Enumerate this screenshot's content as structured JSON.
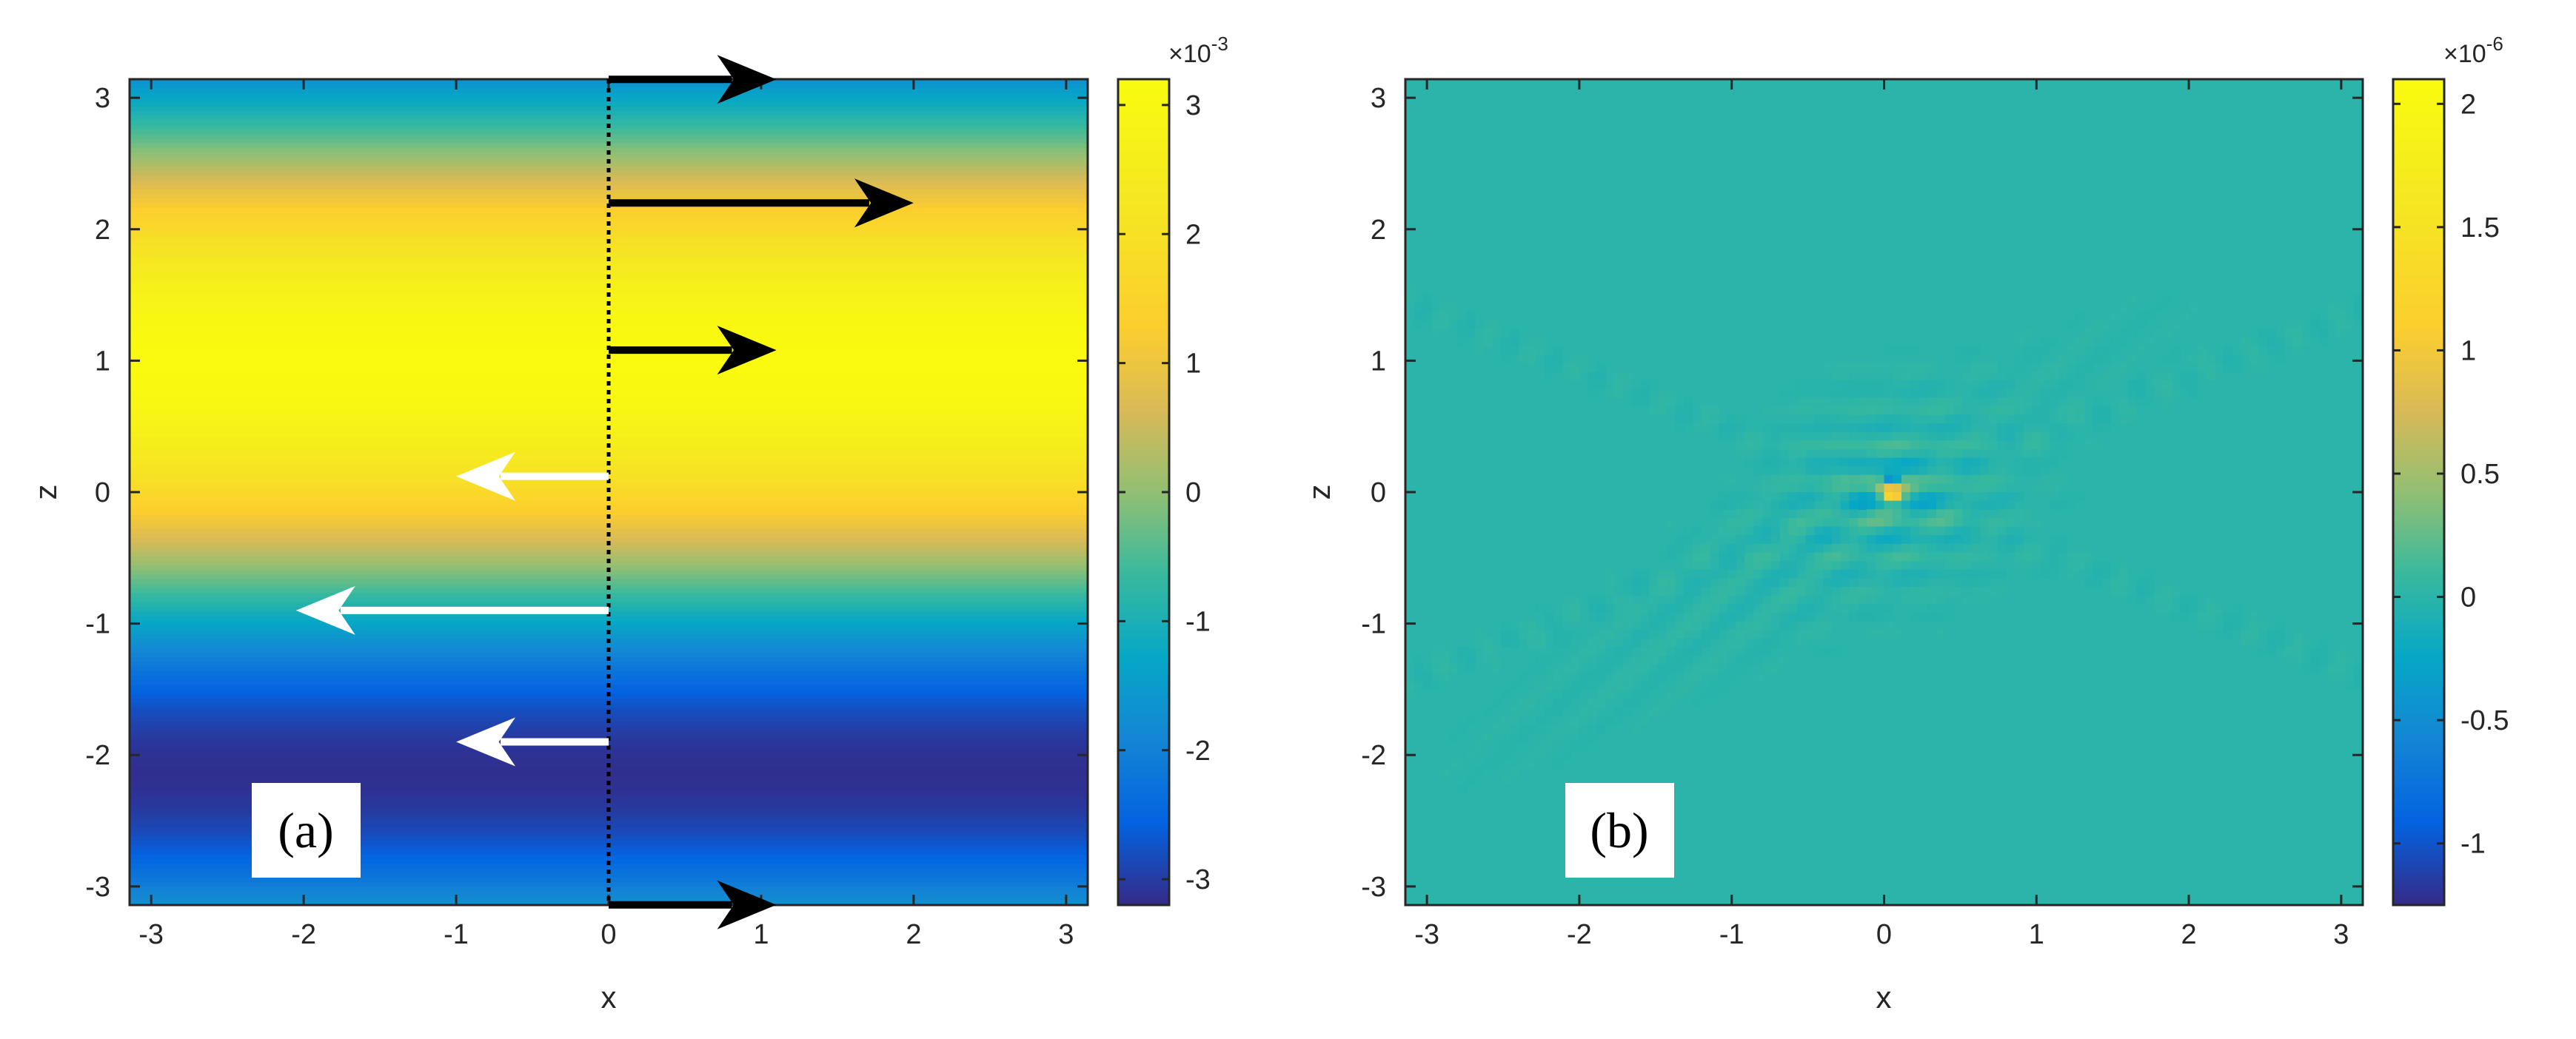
{
  "chart_data": [
    {
      "type": "heatmap",
      "panel_label": "(a)",
      "xlabel": "x",
      "ylabel": "z",
      "xlim": [
        -3.1416,
        3.1416
      ],
      "ylim": [
        -3.1416,
        3.1416
      ],
      "x_ticks": [
        -3,
        -2,
        -1,
        0,
        1,
        2,
        3
      ],
      "y_ticks": [
        -3,
        -2,
        -1,
        0,
        1,
        2,
        3
      ],
      "colormap": "parula",
      "colorbar": {
        "multiplier": "×10",
        "exponent": "-3",
        "range": [
          -3.2,
          3.2
        ],
        "ticks": [
          -3,
          -2,
          -1,
          0,
          1,
          2,
          3
        ]
      },
      "field": "value = 3.14e-3 * sin(z + 0.57), independent of x",
      "profile_line": {
        "x": 0,
        "style": "dotted"
      },
      "arrows": [
        {
          "z": 3.14,
          "length": 1.1,
          "color": "#000000"
        },
        {
          "z": 2.2,
          "length": 2.0,
          "color": "#000000"
        },
        {
          "z": 1.08,
          "length": 1.1,
          "color": "#000000"
        },
        {
          "z": 0.12,
          "length": -1.0,
          "color": "#ffffff"
        },
        {
          "z": -0.9,
          "length": -2.05,
          "color": "#ffffff"
        },
        {
          "z": -1.9,
          "length": -1.0,
          "color": "#ffffff"
        },
        {
          "z": -3.14,
          "length": 1.1,
          "color": "#000000"
        }
      ]
    },
    {
      "type": "heatmap",
      "panel_label": "(b)",
      "xlabel": "x",
      "ylabel": "z",
      "xlim": [
        -3.1416,
        3.1416
      ],
      "ylim": [
        -3.1416,
        3.1416
      ],
      "x_ticks": [
        -3,
        -2,
        -1,
        0,
        1,
        2,
        3
      ],
      "y_ticks": [
        -3,
        -2,
        -1,
        0,
        1,
        2,
        3
      ],
      "colormap": "parula",
      "colorbar": {
        "multiplier": "×10",
        "exponent": "-6",
        "range": [
          -1.25,
          2.1
        ],
        "ticks": [
          -1,
          -0.5,
          0,
          0.5,
          1,
          1.5,
          2
        ]
      },
      "background_value": 0,
      "feature": "localized oscillation near (0.05, 0); peak ≈ 2.0e-6, min ≈ -1.2e-6; ripples radiate toward lower-left and along diagonals"
    }
  ]
}
